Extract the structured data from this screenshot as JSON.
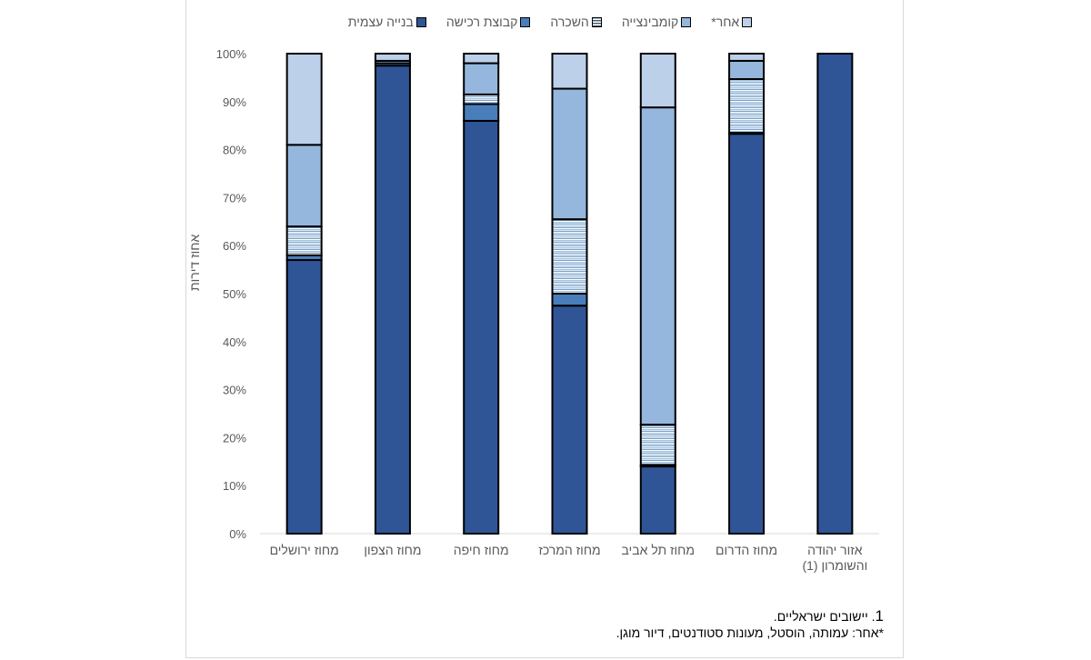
{
  "chart_data": {
    "type": "bar",
    "stacked": true,
    "title": "",
    "xlabel": "",
    "ylabel": "אחוז דירות",
    "ylim": [
      0,
      100
    ],
    "yticks": [
      "0%",
      "10%",
      "20%",
      "30%",
      "40%",
      "50%",
      "60%",
      "70%",
      "80%",
      "90%",
      "100%"
    ],
    "grid": false,
    "legend_position": "top",
    "categories": [
      "מחוז ירושלים",
      "מחוז הצפון",
      "מחוז חיפה",
      "מחוז המרכז",
      "מחוז תל אביב",
      "מחוז הדרום",
      "אזור יהודה והשומרון (1)"
    ],
    "category_lines": [
      [
        "מחוז ירושלים"
      ],
      [
        "מחוז הצפון"
      ],
      [
        "מחוז חיפה"
      ],
      [
        "מחוז המרכז"
      ],
      [
        "מחוז תל אביב"
      ],
      [
        "מחוז הדרום"
      ],
      [
        "אזור יהודה",
        "והשומרון (1)"
      ]
    ],
    "series": [
      {
        "name": "בנייה עצמית",
        "color": "#2f5597",
        "pattern": "solid",
        "values": [
          57,
          97.5,
          86,
          47.5,
          14,
          83.3,
          100
        ]
      },
      {
        "name": "קבוצת רכישה",
        "color": "#4a7ebb",
        "pattern": "solid",
        "values": [
          1,
          0.5,
          3.5,
          2.5,
          0.3,
          0.2,
          0
        ]
      },
      {
        "name": "השכרה",
        "color": "#9dc3e6",
        "pattern": "stripes",
        "values": [
          6,
          0.5,
          2,
          15.5,
          8.4,
          11.2,
          0
        ]
      },
      {
        "name": "קומבינצייה",
        "color": "#95b7de",
        "pattern": "solid",
        "values": [
          17,
          0,
          6.5,
          27.2,
          66.1,
          3.8,
          0
        ]
      },
      {
        "name": "אחר*",
        "color": "#bdd0ea",
        "pattern": "solid",
        "values": [
          19,
          1.5,
          2,
          7.3,
          11.2,
          1.5,
          0
        ]
      }
    ],
    "legend_order": [
      "בנייה עצמית",
      "קבוצת רכישה",
      "השכרה",
      "קומבינצייה",
      "אחר*"
    ]
  },
  "footnotes": {
    "note1_number": "1",
    "note1_text": ". יישובים ישראליים.",
    "note2": "*אחר: עמותה, הוסטל, מעונות סטודנטים, דיור מוגן."
  }
}
